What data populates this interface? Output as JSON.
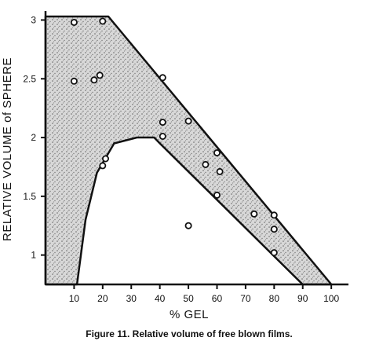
{
  "chart_data": {
    "type": "scatter",
    "title": "",
    "caption": "Figure 11. Relative volume of free blown films.",
    "xlabel": "% GEL",
    "ylabel": "RELATIVE VOLUME of SPHERE",
    "xlim": [
      0,
      106
    ],
    "ylim": [
      0.75,
      3.05
    ],
    "x_ticks": [
      10,
      20,
      30,
      40,
      50,
      60,
      70,
      80,
      90,
      100
    ],
    "y_ticks": [
      1,
      1.5,
      2,
      2.5,
      3
    ],
    "y_tick_labels": [
      "1",
      "1.5",
      "2",
      "2.5",
      "3"
    ],
    "grid": false,
    "series": [
      {
        "values": [
          {
            "x": 10,
            "y": 2.98
          },
          {
            "x": 20,
            "y": 2.99
          },
          {
            "x": 10,
            "y": 2.48
          },
          {
            "x": 17,
            "y": 2.49
          },
          {
            "x": 19,
            "y": 2.53
          },
          {
            "x": 41,
            "y": 2.51
          },
          {
            "x": 41,
            "y": 2.13
          },
          {
            "x": 50,
            "y": 2.14
          },
          {
            "x": 41,
            "y": 2.01
          },
          {
            "x": 60,
            "y": 1.87
          },
          {
            "x": 56,
            "y": 1.77
          },
          {
            "x": 61,
            "y": 1.71
          },
          {
            "x": 21,
            "y": 1.82
          },
          {
            "x": 20,
            "y": 1.76
          },
          {
            "x": 60,
            "y": 1.51
          },
          {
            "x": 73,
            "y": 1.35
          },
          {
            "x": 80,
            "y": 1.34
          },
          {
            "x": 80,
            "y": 1.22
          },
          {
            "x": 50,
            "y": 1.25
          },
          {
            "x": 80,
            "y": 1.02
          }
        ]
      }
    ],
    "shaded_region": {
      "color": "#8a8a8a",
      "outer_boundary": [
        {
          "x": 0,
          "y": 3.03
        },
        {
          "x": 22,
          "y": 3.03
        },
        {
          "x": 100,
          "y": 0.75
        },
        {
          "x": 90,
          "y": 0.75
        },
        {
          "x": 40,
          "y": 1.95
        },
        {
          "x": 38,
          "y": 2.0
        },
        {
          "x": 32,
          "y": 2.0
        },
        {
          "x": 24,
          "y": 1.95
        },
        {
          "x": 18,
          "y": 1.7
        },
        {
          "x": 14,
          "y": 1.3
        },
        {
          "x": 11,
          "y": 0.75
        },
        {
          "x": 0,
          "y": 0.75
        }
      ]
    }
  }
}
